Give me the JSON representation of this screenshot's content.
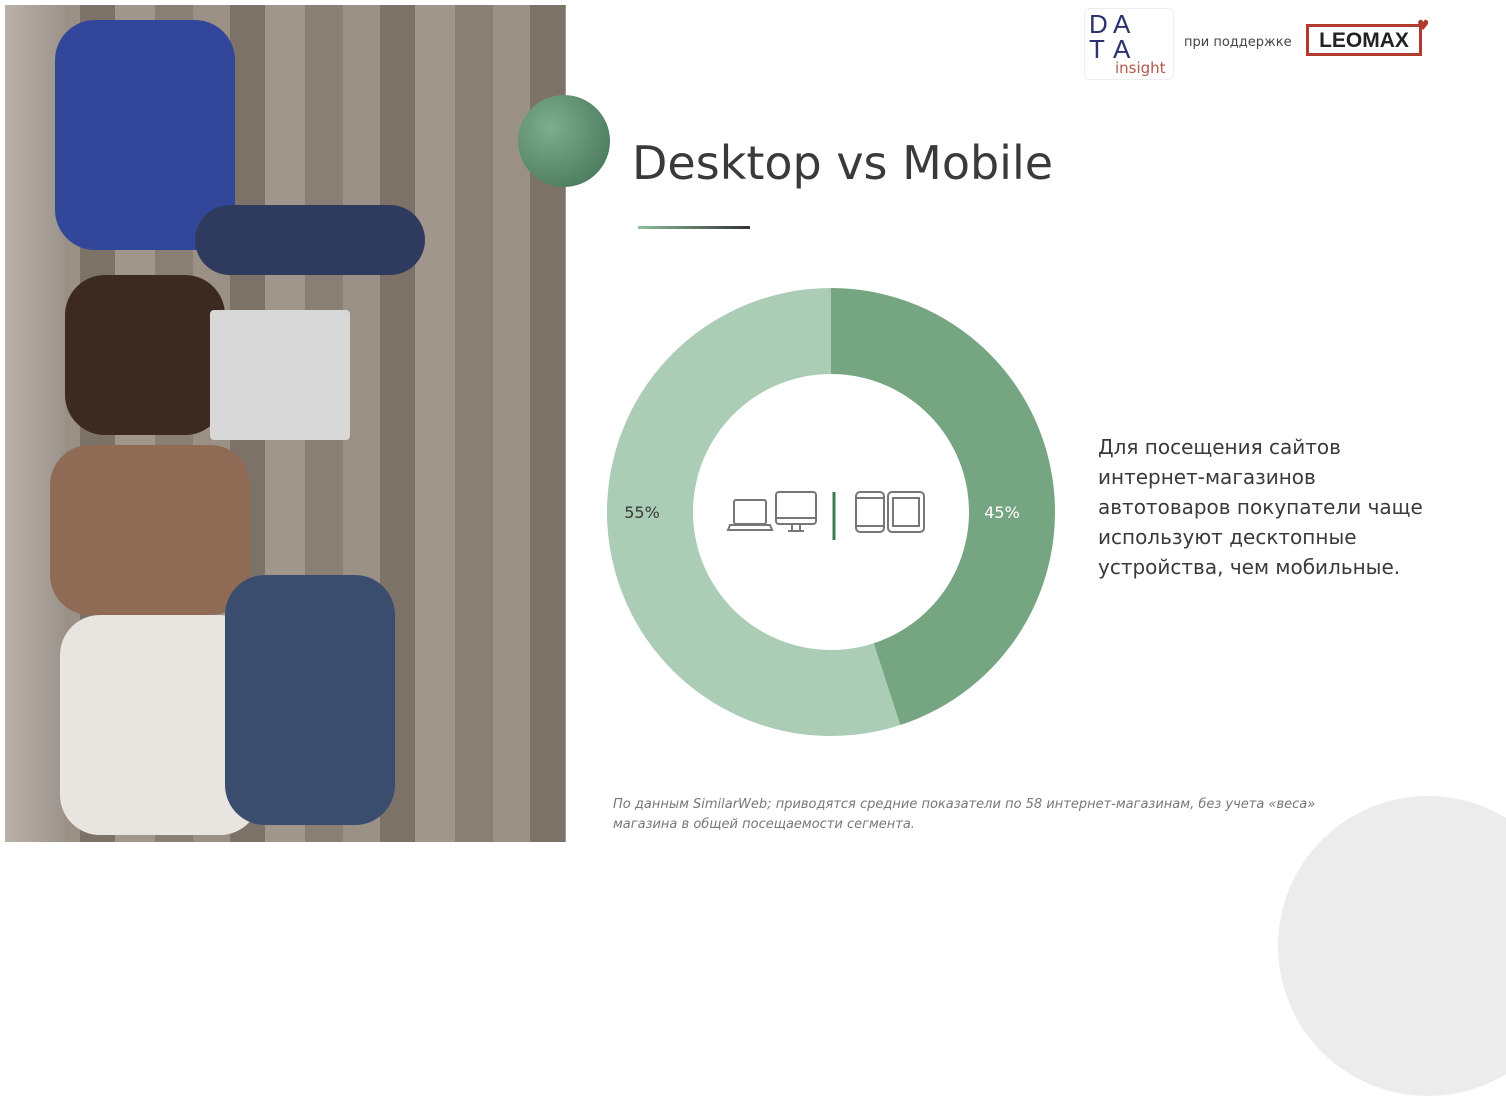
{
  "slide": {
    "title": "Desktop vs Mobile",
    "description": "Для посещения сайтов интернет-магазинов автотоваров покупатели чаще используют десктопные устройства, чем мобильные.",
    "footnote": "По данным SimilarWeb; приводятся средние показатели по  58 интернет-магазинам, без учета «веса» магазина в общей посещаемости сегмента."
  },
  "header": {
    "logo_data_insight": {
      "letters": [
        "D",
        "A",
        "T",
        "A"
      ],
      "word": "insight"
    },
    "support_text": "при поддержке",
    "logo_leomax": "LEOMAX"
  },
  "colors": {
    "mobile": "#76a582",
    "desktop": "#abccb5",
    "accent": "#3f6f52",
    "brand_red": "#b03a2e"
  },
  "chart_data": {
    "type": "pie",
    "donut": true,
    "categories": [
      "Mobile",
      "Desktop"
    ],
    "values": [
      45,
      55
    ],
    "labels": [
      "45%",
      "55%"
    ],
    "center_icons": [
      "laptop-icon",
      "desktop-monitor-icon",
      "smartphone-icon",
      "tablet-icon"
    ]
  }
}
